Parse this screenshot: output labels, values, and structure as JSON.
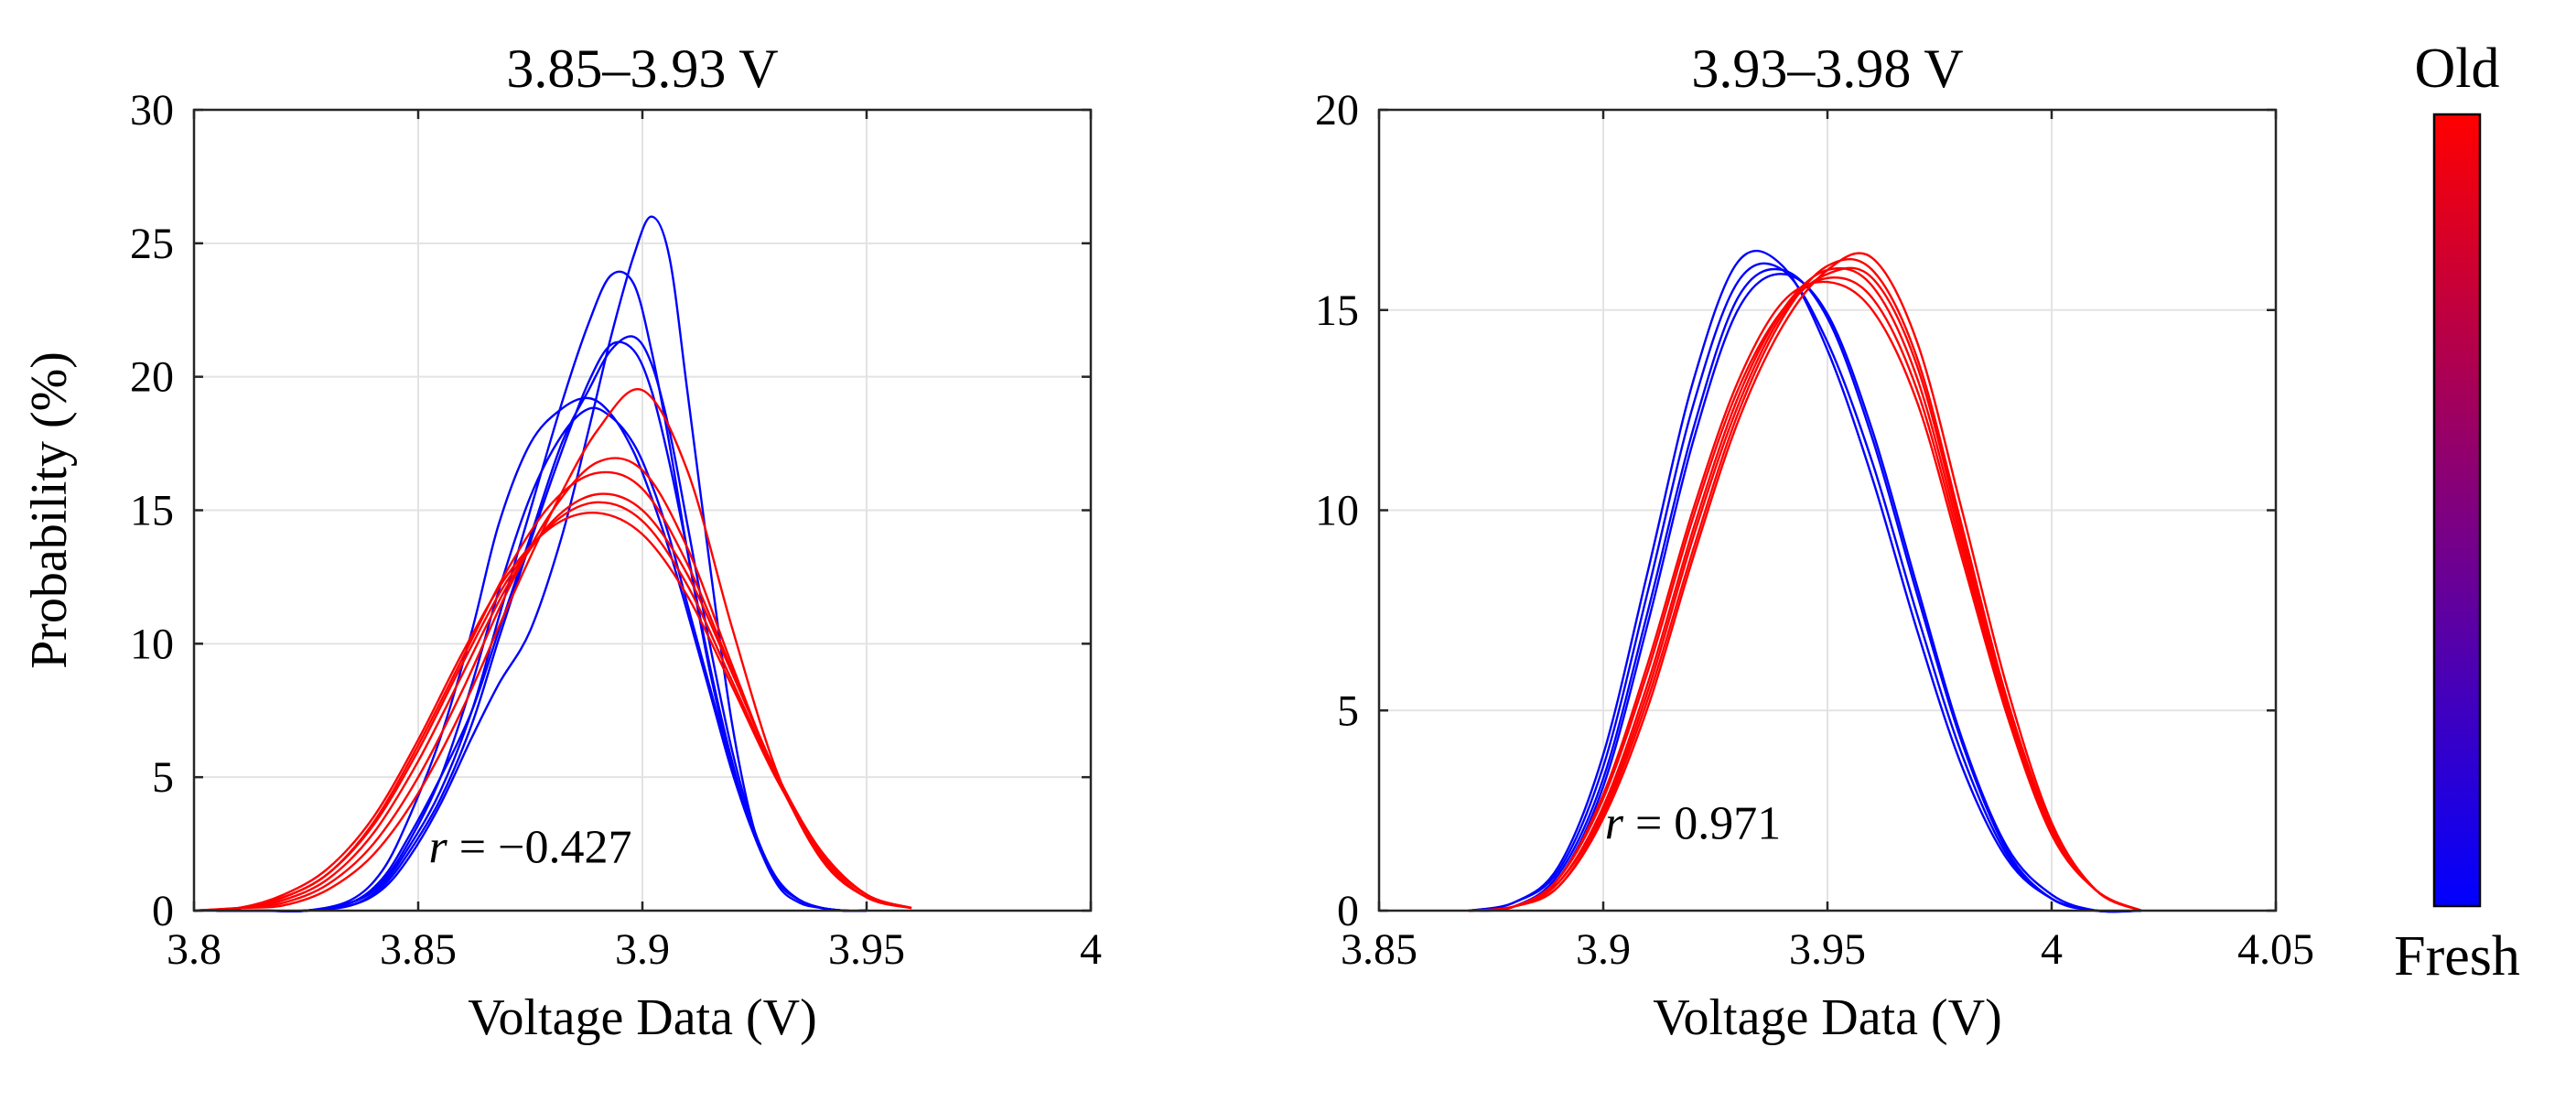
{
  "colorbar": {
    "top_label": "Old",
    "bottom_label": "Fresh",
    "top_color": "#ff0000",
    "bottom_color": "#0000ff"
  },
  "chart_data": [
    {
      "type": "line",
      "title": "3.85–3.93 V",
      "xlabel": "Voltage Data (V)",
      "ylabel": "Probability (%)",
      "xlim": [
        3.8,
        4.0
      ],
      "ylim": [
        0,
        30
      ],
      "xticks": [
        3.8,
        3.85,
        3.9,
        3.95,
        4.0
      ],
      "xtick_labels": [
        "3.8",
        "3.85",
        "3.9",
        "3.95",
        "4"
      ],
      "yticks": [
        0,
        5,
        10,
        15,
        20,
        25,
        30
      ],
      "ytick_labels": [
        "0",
        "5",
        "10",
        "15",
        "20",
        "25",
        "30"
      ],
      "grid": true,
      "annotation": {
        "var": "r",
        "text": " = −0.427",
        "x": 3.875,
        "y": 1.8
      },
      "series": [
        {
          "name": "Fresh",
          "color": "#0000ff",
          "x": [
            3.805,
            3.815,
            3.825,
            3.835,
            3.842,
            3.848,
            3.855,
            3.862,
            3.868,
            3.875,
            3.882,
            3.888,
            3.893,
            3.898,
            3.902,
            3.906,
            3.91,
            3.915,
            3.92,
            3.925,
            3.93,
            3.935,
            3.94,
            3.945,
            3.95
          ],
          "y": [
            0,
            0,
            0,
            0.3,
            1.2,
            2.8,
            5,
            7.5,
            10.5,
            14,
            17.5,
            19.5,
            21,
            21.5,
            20.5,
            18,
            14.5,
            10,
            6,
            3,
            1.2,
            0.4,
            0.1,
            0,
            0
          ]
        },
        {
          "name": "Fresh",
          "color": "#0000ff",
          "x": [
            3.805,
            3.815,
            3.825,
            3.835,
            3.842,
            3.848,
            3.855,
            3.862,
            3.868,
            3.875,
            3.882,
            3.888,
            3.893,
            3.898,
            3.902,
            3.906,
            3.91,
            3.915,
            3.92,
            3.925,
            3.93,
            3.935,
            3.94,
            3.945,
            3.95
          ],
          "y": [
            0,
            0,
            0,
            0.2,
            0.8,
            2,
            4,
            6.5,
            8.5,
            10.5,
            14,
            18,
            21.5,
            24.5,
            26,
            24.5,
            19.5,
            13,
            7,
            3,
            1,
            0.3,
            0.1,
            0,
            0
          ]
        },
        {
          "name": "Fresh",
          "color": "#0000ff",
          "x": [
            3.805,
            3.815,
            3.825,
            3.835,
            3.842,
            3.848,
            3.855,
            3.862,
            3.868,
            3.875,
            3.882,
            3.888,
            3.893,
            3.898,
            3.902,
            3.906,
            3.91,
            3.915,
            3.92,
            3.925,
            3.93,
            3.935,
            3.94,
            3.945,
            3.95
          ],
          "y": [
            0,
            0,
            0,
            0.4,
            1.5,
            3.5,
            6.5,
            10.5,
            14.5,
            17.5,
            18.8,
            19.2,
            18.6,
            17.2,
            15.5,
            13.5,
            11.2,
            8.2,
            5.2,
            2.8,
            1.2,
            0.4,
            0.1,
            0,
            0
          ]
        },
        {
          "name": "Fresh",
          "color": "#0000ff",
          "x": [
            3.805,
            3.815,
            3.825,
            3.835,
            3.842,
            3.848,
            3.855,
            3.862,
            3.868,
            3.875,
            3.882,
            3.888,
            3.893,
            3.898,
            3.902,
            3.906,
            3.91,
            3.915,
            3.92,
            3.925,
            3.93,
            3.935,
            3.94,
            3.945,
            3.95
          ],
          "y": [
            0,
            0,
            0,
            0.3,
            1,
            2.4,
            4.5,
            7.5,
            11,
            15,
            19,
            22,
            23.8,
            23.5,
            21,
            17.5,
            13.5,
            9,
            5.5,
            2.8,
            1.1,
            0.4,
            0.1,
            0,
            0
          ]
        },
        {
          "name": "Fresh",
          "color": "#0000ff",
          "x": [
            3.805,
            3.815,
            3.825,
            3.835,
            3.842,
            3.848,
            3.855,
            3.862,
            3.868,
            3.875,
            3.882,
            3.888,
            3.893,
            3.898,
            3.902,
            3.906,
            3.91,
            3.915,
            3.92,
            3.925,
            3.93,
            3.935,
            3.94,
            3.945,
            3.95
          ],
          "y": [
            0,
            0,
            0,
            0.3,
            1.1,
            2.6,
            5,
            8.5,
            12,
            15.5,
            17.8,
            18.8,
            18.5,
            17.5,
            16,
            14,
            11.5,
            8.4,
            5.4,
            2.8,
            1.1,
            0.4,
            0.1,
            0,
            0
          ]
        },
        {
          "name": "Fresh",
          "color": "#0000ff",
          "x": [
            3.805,
            3.815,
            3.825,
            3.835,
            3.842,
            3.848,
            3.855,
            3.862,
            3.868,
            3.875,
            3.882,
            3.888,
            3.893,
            3.898,
            3.902,
            3.906,
            3.91,
            3.915,
            3.92,
            3.925,
            3.93,
            3.935,
            3.94,
            3.945,
            3.95
          ],
          "y": [
            0,
            0,
            0,
            0.2,
            0.9,
            2.2,
            4.2,
            7,
            10.2,
            13.8,
            17.2,
            19.8,
            21.2,
            21,
            19.5,
            16.8,
            13.5,
            9.2,
            5.6,
            2.8,
            1.1,
            0.4,
            0.1,
            0,
            0
          ]
        },
        {
          "name": "Old",
          "color": "#ff0000",
          "x": [
            3.8,
            3.81,
            3.82,
            3.83,
            3.84,
            3.85,
            3.86,
            3.87,
            3.88,
            3.89,
            3.9,
            3.91,
            3.92,
            3.93,
            3.94,
            3.95,
            3.96
          ],
          "y": [
            0,
            0.1,
            0.5,
            1.4,
            3.2,
            6,
            9.3,
            12.4,
            14.5,
            15.3,
            14.6,
            12.2,
            8.6,
            5,
            2.2,
            0.6,
            0.1
          ]
        },
        {
          "name": "Old",
          "color": "#ff0000",
          "x": [
            3.8,
            3.81,
            3.82,
            3.83,
            3.84,
            3.85,
            3.86,
            3.87,
            3.88,
            3.89,
            3.9,
            3.91,
            3.92,
            3.93,
            3.94,
            3.95,
            3.96
          ],
          "y": [
            0,
            0.1,
            0.4,
            1.2,
            2.9,
            5.6,
            8.9,
            12.2,
            14.6,
            15.6,
            15,
            12.6,
            8.9,
            5.1,
            2.2,
            0.6,
            0.1
          ]
        },
        {
          "name": "Old",
          "color": "#ff0000",
          "x": [
            3.8,
            3.81,
            3.82,
            3.83,
            3.84,
            3.85,
            3.86,
            3.87,
            3.88,
            3.89,
            3.9,
            3.91,
            3.92,
            3.93,
            3.94,
            3.95,
            3.96
          ],
          "y": [
            0,
            0.1,
            0.6,
            1.6,
            3.5,
            6.4,
            9.7,
            12.6,
            14.4,
            14.9,
            14.1,
            11.8,
            8.4,
            4.9,
            2.2,
            0.6,
            0.1
          ]
        },
        {
          "name": "Old",
          "color": "#ff0000",
          "x": [
            3.8,
            3.81,
            3.82,
            3.83,
            3.84,
            3.85,
            3.86,
            3.87,
            3.88,
            3.89,
            3.9,
            3.91,
            3.92,
            3.93,
            3.94,
            3.95,
            3.96
          ],
          "y": [
            0,
            0.1,
            0.3,
            1,
            2.5,
            5,
            8.3,
            12,
            15,
            16.8,
            16.5,
            13.6,
            9.2,
            5,
            2,
            0.5,
            0.1
          ]
        },
        {
          "name": "Old",
          "color": "#ff0000",
          "x": [
            3.8,
            3.81,
            3.82,
            3.83,
            3.84,
            3.85,
            3.86,
            3.87,
            3.88,
            3.89,
            3.9,
            3.91,
            3.92,
            3.93,
            3.94,
            3.95,
            3.96
          ],
          "y": [
            0,
            0.1,
            0.2,
            0.8,
            2.1,
            4.4,
            7.6,
            11.4,
            15,
            18,
            19.5,
            16.5,
            10.6,
            5.2,
            1.9,
            0.5,
            0.1
          ]
        },
        {
          "name": "Old",
          "color": "#ff0000",
          "x": [
            3.8,
            3.81,
            3.82,
            3.83,
            3.84,
            3.85,
            3.86,
            3.87,
            3.88,
            3.89,
            3.9,
            3.91,
            3.92,
            3.93,
            3.94,
            3.95,
            3.96
          ],
          "y": [
            0,
            0.1,
            0.5,
            1.4,
            3.3,
            6.2,
            9.5,
            12.8,
            15.3,
            16.4,
            15.8,
            13,
            9,
            5.1,
            2.1,
            0.6,
            0.1
          ]
        }
      ]
    },
    {
      "type": "line",
      "title": "3.93–3.98 V",
      "xlabel": "Voltage Data (V)",
      "ylabel": "",
      "xlim": [
        3.85,
        4.05
      ],
      "ylim": [
        0,
        20
      ],
      "xticks": [
        3.85,
        3.9,
        3.95,
        4.0,
        4.05
      ],
      "xtick_labels": [
        "3.85",
        "3.9",
        "3.95",
        "4",
        "4.05"
      ],
      "yticks": [
        0,
        5,
        10,
        15,
        20
      ],
      "ytick_labels": [
        "0",
        "5",
        "10",
        "15",
        "20"
      ],
      "grid": true,
      "annotation": {
        "var": "r",
        "text": " = 0.971",
        "x": 3.92,
        "y": 1.8
      },
      "series": [
        {
          "name": "Fresh",
          "color": "#0000ff",
          "x": [
            3.87,
            3.88,
            3.89,
            3.9,
            3.91,
            3.92,
            3.93,
            3.94,
            3.95,
            3.96,
            3.97,
            3.98,
            3.99,
            4.0,
            4.01,
            4.02
          ],
          "y": [
            0,
            0.2,
            1,
            3.6,
            8,
            12.6,
            15.7,
            16,
            14.2,
            11.2,
            7.4,
            3.9,
            1.4,
            0.3,
            0,
            0
          ]
        },
        {
          "name": "Fresh",
          "color": "#0000ff",
          "x": [
            3.87,
            3.88,
            3.89,
            3.9,
            3.91,
            3.92,
            3.93,
            3.94,
            3.95,
            3.96,
            3.97,
            3.98,
            3.99,
            4.0,
            4.01,
            4.02
          ],
          "y": [
            0,
            0.2,
            1.1,
            3.9,
            8.5,
            13.2,
            16.2,
            16.1,
            14,
            10.8,
            7,
            3.6,
            1.3,
            0.3,
            0,
            0
          ]
        },
        {
          "name": "Fresh",
          "color": "#0000ff",
          "x": [
            3.87,
            3.88,
            3.89,
            3.9,
            3.91,
            3.92,
            3.93,
            3.94,
            3.95,
            3.96,
            3.97,
            3.98,
            3.99,
            4.0,
            4.01,
            4.02
          ],
          "y": [
            0,
            0.1,
            0.9,
            3.3,
            7.5,
            12,
            15.3,
            16,
            14.8,
            11.8,
            7.9,
            4.2,
            1.5,
            0.3,
            0,
            0
          ]
        },
        {
          "name": "Fresh",
          "color": "#0000ff",
          "x": [
            3.87,
            3.88,
            3.89,
            3.9,
            3.91,
            3.92,
            3.93,
            3.94,
            3.95,
            3.96,
            3.97,
            3.98,
            3.99,
            4.0,
            4.01,
            4.02
          ],
          "y": [
            0,
            0.1,
            0.8,
            3.1,
            7.2,
            11.7,
            15,
            15.9,
            14.9,
            12,
            8.1,
            4.3,
            1.6,
            0.4,
            0,
            0
          ]
        },
        {
          "name": "Old",
          "color": "#ff0000",
          "x": [
            3.87,
            3.88,
            3.89,
            3.9,
            3.91,
            3.92,
            3.93,
            3.94,
            3.95,
            3.96,
            3.97,
            3.98,
            3.99,
            4.0,
            4.01,
            4.02
          ],
          "y": [
            0,
            0.1,
            0.8,
            2.8,
            6,
            9.8,
            13,
            15,
            15.8,
            15.3,
            13,
            9,
            5,
            2,
            0.5,
            0
          ]
        },
        {
          "name": "Old",
          "color": "#ff0000",
          "x": [
            3.87,
            3.88,
            3.89,
            3.9,
            3.91,
            3.92,
            3.93,
            3.94,
            3.95,
            3.96,
            3.97,
            3.98,
            3.99,
            4.0,
            4.01,
            4.02
          ],
          "y": [
            0,
            0.1,
            0.7,
            2.6,
            5.7,
            9.5,
            12.8,
            15,
            16,
            15.6,
            13.3,
            9.2,
            5.1,
            2,
            0.5,
            0
          ]
        },
        {
          "name": "Old",
          "color": "#ff0000",
          "x": [
            3.87,
            3.88,
            3.89,
            3.9,
            3.91,
            3.92,
            3.93,
            3.94,
            3.95,
            3.96,
            3.97,
            3.98,
            3.99,
            4.0,
            4.01,
            4.02
          ],
          "y": [
            0,
            0.1,
            0.6,
            2.4,
            5.3,
            9,
            12.4,
            14.8,
            16.1,
            16,
            13.8,
            9.6,
            5.3,
            2.1,
            0.5,
            0
          ]
        },
        {
          "name": "Old",
          "color": "#ff0000",
          "x": [
            3.87,
            3.88,
            3.89,
            3.9,
            3.91,
            3.92,
            3.93,
            3.94,
            3.95,
            3.96,
            3.97,
            3.98,
            3.99,
            4.0,
            4.01,
            4.02
          ],
          "y": [
            0,
            0.1,
            0.6,
            2.3,
            5.1,
            8.8,
            12.2,
            14.6,
            16,
            16.3,
            14.2,
            10,
            5.6,
            2.2,
            0.5,
            0
          ]
        },
        {
          "name": "Old",
          "color": "#ff0000",
          "x": [
            3.87,
            3.88,
            3.89,
            3.9,
            3.91,
            3.92,
            3.93,
            3.94,
            3.95,
            3.96,
            3.97,
            3.98,
            3.99,
            4.0,
            4.01,
            4.02
          ],
          "y": [
            0,
            0.1,
            0.8,
            2.9,
            6.2,
            10,
            13.2,
            15.2,
            15.7,
            15,
            12.7,
            8.8,
            4.9,
            1.9,
            0.5,
            0
          ]
        },
        {
          "name": "Old",
          "color": "#ff0000",
          "x": [
            3.87,
            3.88,
            3.89,
            3.9,
            3.91,
            3.92,
            3.93,
            3.94,
            3.95,
            3.96,
            3.97,
            3.98,
            3.99,
            4.0,
            4.01,
            4.02
          ],
          "y": [
            0,
            0.1,
            0.7,
            2.5,
            5.5,
            9.3,
            12.6,
            14.9,
            15.9,
            15.8,
            13.6,
            9.4,
            5.2,
            2,
            0.5,
            0
          ]
        }
      ]
    }
  ]
}
